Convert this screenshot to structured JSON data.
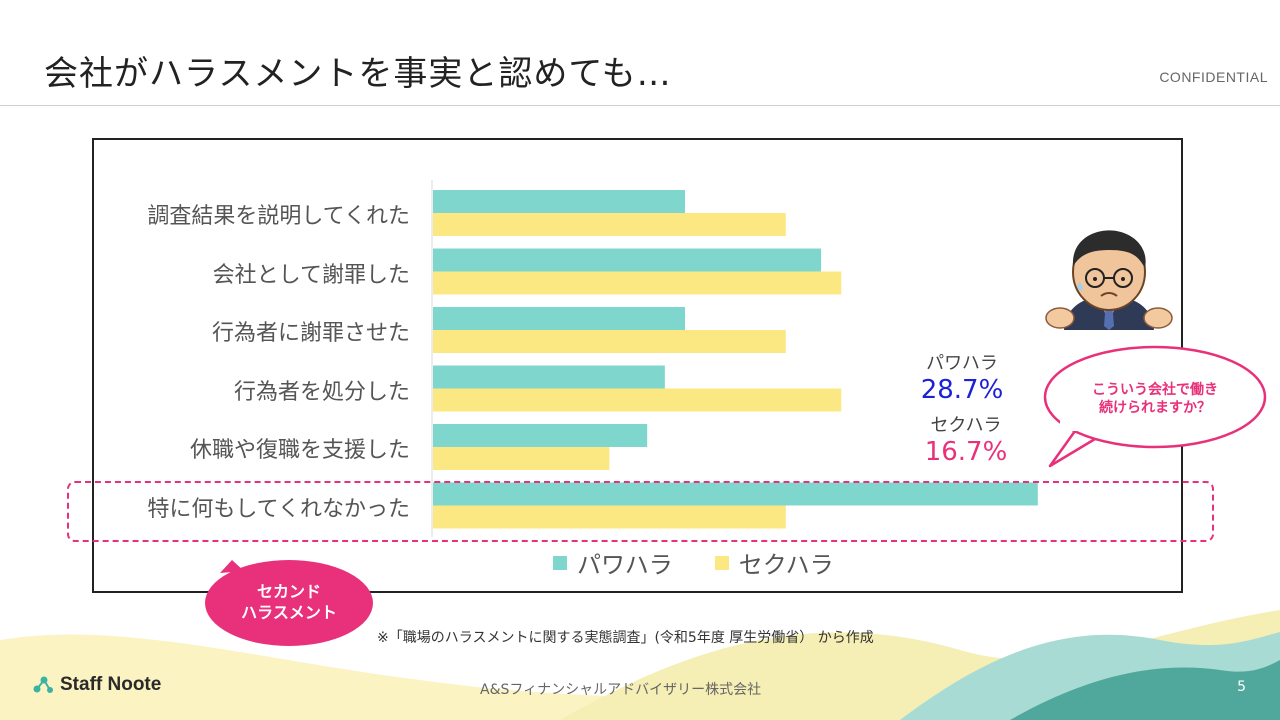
{
  "title": "会社がハラスメントを事実と認めても…",
  "confidential": "CONFIDENTIAL",
  "chart_data": {
    "type": "bar",
    "orientation": "horizontal",
    "categories": [
      "調査結果を説明してくれた",
      "会社として謝罪した",
      "行為者に謝罪させた",
      "行為者を処分した",
      "休職や復職を支援した",
      "特に何もしてくれなかった"
    ],
    "series": [
      {
        "name": "パワハラ",
        "color": "#7fd6cc",
        "values": [
          10.0,
          15.4,
          10.0,
          9.2,
          8.5,
          24.0
        ]
      },
      {
        "name": "セクハラ",
        "color": "#fbe883",
        "values": [
          14.0,
          16.2,
          14.0,
          16.2,
          7.0,
          14.0
        ]
      }
    ],
    "xlim": [
      0,
      30
    ],
    "grid": false,
    "legend_position": "bottom"
  },
  "stats": {
    "pawahara_label": "パワハラ",
    "pawahara_value": "28.7%",
    "sekuhara_label": "セクハラ",
    "sekuhara_value": "16.7%"
  },
  "bubbles": {
    "second_harassment_line1": "セカンド",
    "second_harassment_line2": "ハラスメント",
    "question_line1": "こういう会社で働き",
    "question_line2": "続けられますか？"
  },
  "source": "※「職場のハラスメントに関する実態調査」(令和5年度 厚生労働省） から作成",
  "company": "A&Sフィナンシャルアドバイザリー株式会社",
  "page_number": "5",
  "logo_text": "Staff Noote",
  "colors": {
    "accent": "#e8317a",
    "pawahara_stat": "#1a22d6",
    "sekuhara_stat": "#e8317a"
  }
}
